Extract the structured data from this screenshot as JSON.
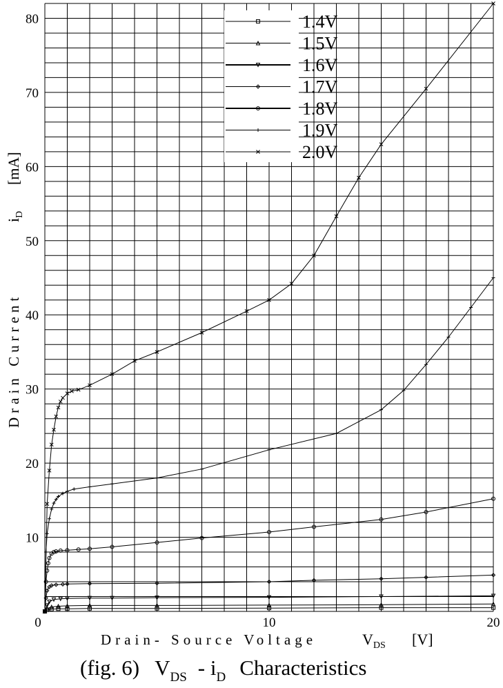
{
  "chart_data": {
    "type": "line",
    "xlabel": {
      "text": "Drain- Source Voltage",
      "symbol": "V",
      "sub": "DS",
      "unit": "[V]"
    },
    "ylabel": {
      "text": "Drain Current",
      "symbol": "i",
      "sub": "D",
      "unit": "[mA]"
    },
    "caption": {
      "prefix": "(fig. 6)",
      "v": "V",
      "v_sub": "DS",
      "dash": "- i",
      "i_sub": "D",
      "suffix": "Characteristics"
    },
    "xlim": [
      0,
      20
    ],
    "ylim": [
      0,
      82
    ],
    "grid": true,
    "x_ticks": [
      0,
      10,
      20
    ],
    "y_ticks": [
      0,
      10,
      20,
      30,
      40,
      50,
      60,
      70,
      80
    ],
    "legend_position": "top-center",
    "series": [
      {
        "name": "1.4V",
        "marker": "square",
        "x": [
          0,
          0.1,
          0.3,
          0.6,
          1,
          2,
          5,
          10,
          15,
          20
        ],
        "y": [
          0,
          0.2,
          0.3,
          0.35,
          0.35,
          0.4,
          0.4,
          0.45,
          0.5,
          0.5
        ]
      },
      {
        "name": "1.5V",
        "marker": "triangle",
        "x": [
          0,
          0.1,
          0.3,
          0.6,
          1,
          2,
          5,
          10,
          15,
          20
        ],
        "y": [
          0,
          0.4,
          0.6,
          0.7,
          0.75,
          0.8,
          0.8,
          0.85,
          0.9,
          1.0
        ]
      },
      {
        "name": "1.6V",
        "marker": "triangle-down",
        "x": [
          0,
          0.1,
          0.2,
          0.4,
          0.7,
          1,
          2,
          3,
          5,
          10,
          15,
          20
        ],
        "y": [
          0,
          0.8,
          1.3,
          1.6,
          1.7,
          1.75,
          1.8,
          1.8,
          1.85,
          1.9,
          2.0,
          2.1
        ]
      },
      {
        "name": "1.7V",
        "marker": "diamond",
        "x": [
          0,
          0.05,
          0.1,
          0.2,
          0.3,
          0.5,
          0.8,
          1,
          2,
          5,
          10,
          12,
          15,
          17,
          20
        ],
        "y": [
          0,
          1.8,
          2.8,
          3.3,
          3.5,
          3.6,
          3.65,
          3.7,
          3.75,
          3.8,
          4.0,
          4.2,
          4.4,
          4.6,
          4.9
        ]
      },
      {
        "name": "1.8V",
        "marker": "circle",
        "x": [
          0,
          0.05,
          0.1,
          0.15,
          0.2,
          0.3,
          0.4,
          0.5,
          0.7,
          1,
          1.5,
          2,
          3,
          5,
          7,
          10,
          12,
          15,
          17,
          20
        ],
        "y": [
          0,
          4,
          5.5,
          6.5,
          7.2,
          7.8,
          8.0,
          8.1,
          8.2,
          8.25,
          8.35,
          8.45,
          8.7,
          9.3,
          9.9,
          10.7,
          11.4,
          12.4,
          13.4,
          15.2
        ]
      },
      {
        "name": "1.9V",
        "marker": "plus",
        "x": [
          0,
          0.05,
          0.1,
          0.2,
          0.3,
          0.4,
          0.5,
          0.6,
          0.8,
          1,
          1.3,
          2,
          3,
          5,
          7,
          10,
          13,
          15,
          16,
          17,
          18,
          19,
          20
        ],
        "y": [
          0,
          8,
          10.5,
          12.5,
          13.8,
          14.6,
          15.1,
          15.5,
          15.9,
          16.2,
          16.5,
          16.8,
          17.2,
          18,
          19.2,
          21.8,
          24,
          27.2,
          29.8,
          33.3,
          37,
          41,
          45
        ]
      },
      {
        "name": "2.0V",
        "marker": "x",
        "x": [
          0,
          0.1,
          0.2,
          0.3,
          0.4,
          0.5,
          0.6,
          0.7,
          0.8,
          1,
          1.2,
          1.5,
          2,
          3,
          4,
          5,
          7,
          9,
          10,
          11,
          12,
          13,
          14,
          15,
          17,
          20
        ],
        "y": [
          0,
          14.5,
          19,
          22.5,
          24.5,
          26.3,
          27.5,
          28.3,
          28.8,
          29.4,
          29.7,
          29.9,
          30.5,
          32,
          33.8,
          35,
          37.6,
          40.5,
          42,
          44.2,
          48,
          53.3,
          58.5,
          63,
          70.5,
          82
        ]
      }
    ]
  }
}
